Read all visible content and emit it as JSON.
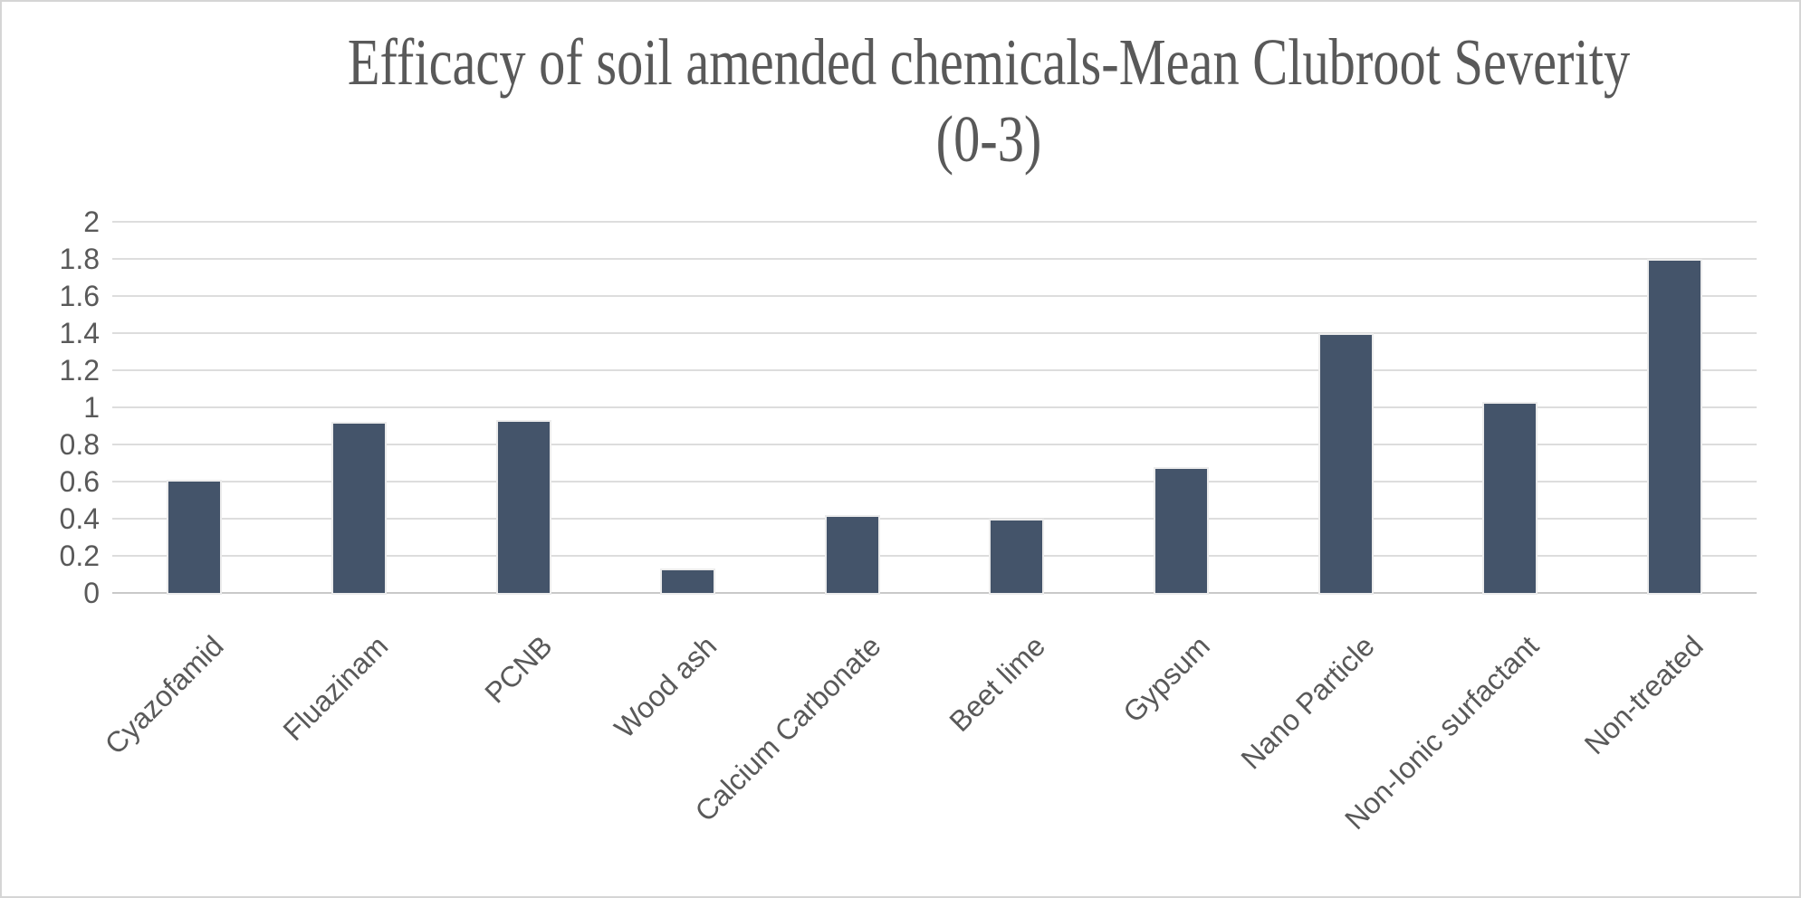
{
  "title": {
    "line1": "Efficacy of soil amended chemicals-Mean Clubroot Severity",
    "line2": "(0-3)"
  },
  "chart_data": {
    "type": "bar",
    "title": "Efficacy of soil amended chemicals-Mean Clubroot Severity (0-3)",
    "categories": [
      "Cyazofamid",
      "Fluazinam",
      "PCNB",
      "Wood ash",
      "Calcium Carbonate",
      "Beet lime",
      "Gypsum",
      "Nano Particle",
      "Non-Ionic surfactant",
      "Non-treated"
    ],
    "values": [
      0.6,
      0.91,
      0.92,
      0.12,
      0.41,
      0.39,
      0.67,
      1.39,
      1.02,
      1.79
    ],
    "xlabel": "",
    "ylabel": "",
    "ylim": [
      0,
      2
    ],
    "yticks": [
      "0",
      "0.2",
      "0.4",
      "0.6",
      "0.8",
      "1",
      "1.2",
      "1.4",
      "1.6",
      "1.8",
      "2"
    ],
    "ytick_values": [
      0,
      0.2,
      0.4,
      0.6,
      0.8,
      1,
      1.2,
      1.4,
      1.6,
      1.8,
      2
    ],
    "grid": true,
    "legend": "none",
    "bar_color": "#44546a",
    "gridline_color": "#dddddd",
    "text_color": "#595959"
  }
}
